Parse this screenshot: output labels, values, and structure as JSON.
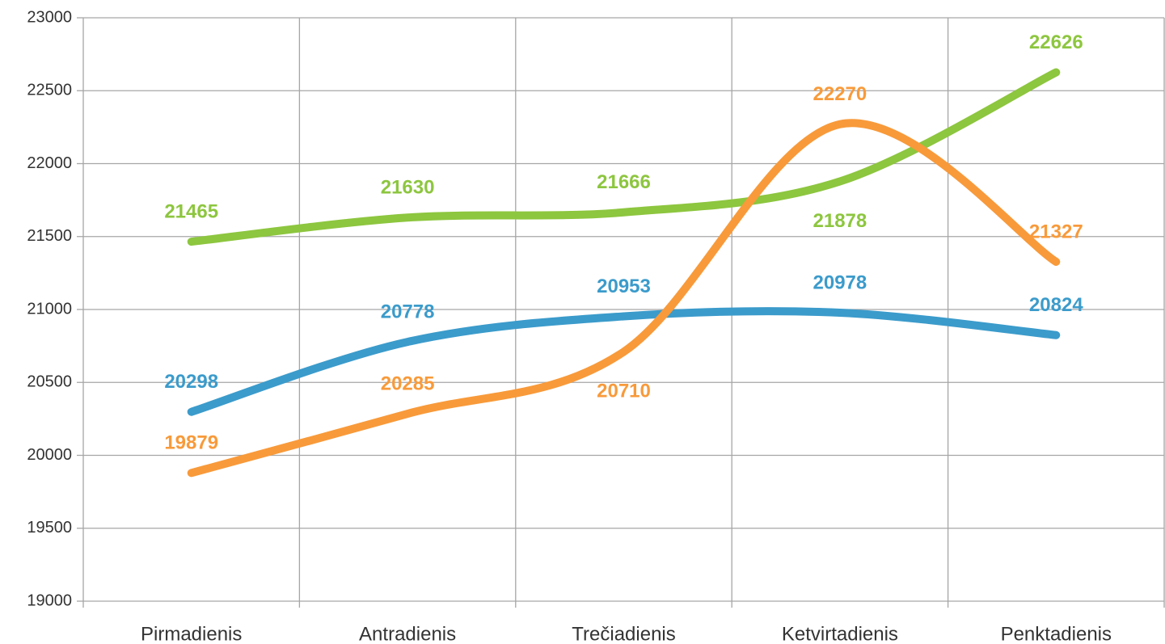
{
  "chart_data": {
    "type": "line",
    "categories": [
      "Pirmadienis",
      "Antradienis",
      "Trečiadienis",
      "Ketvirtadienis",
      "Penktadienis"
    ],
    "series": [
      {
        "color": "#8dc63f",
        "values": [
          21465,
          21630,
          21666,
          21878,
          22626
        ]
      },
      {
        "color": "#3b9bcb",
        "values": [
          20298,
          20778,
          20953,
          20978,
          20824
        ]
      },
      {
        "color": "#f89a3a",
        "values": [
          19879,
          20285,
          20710,
          22270,
          21327
        ]
      }
    ],
    "ylim": [
      19000,
      23000
    ],
    "yticks": [
      19000,
      19500,
      20000,
      20500,
      21000,
      21500,
      22000,
      22500,
      23000
    ],
    "grid": true,
    "smooth": true
  }
}
